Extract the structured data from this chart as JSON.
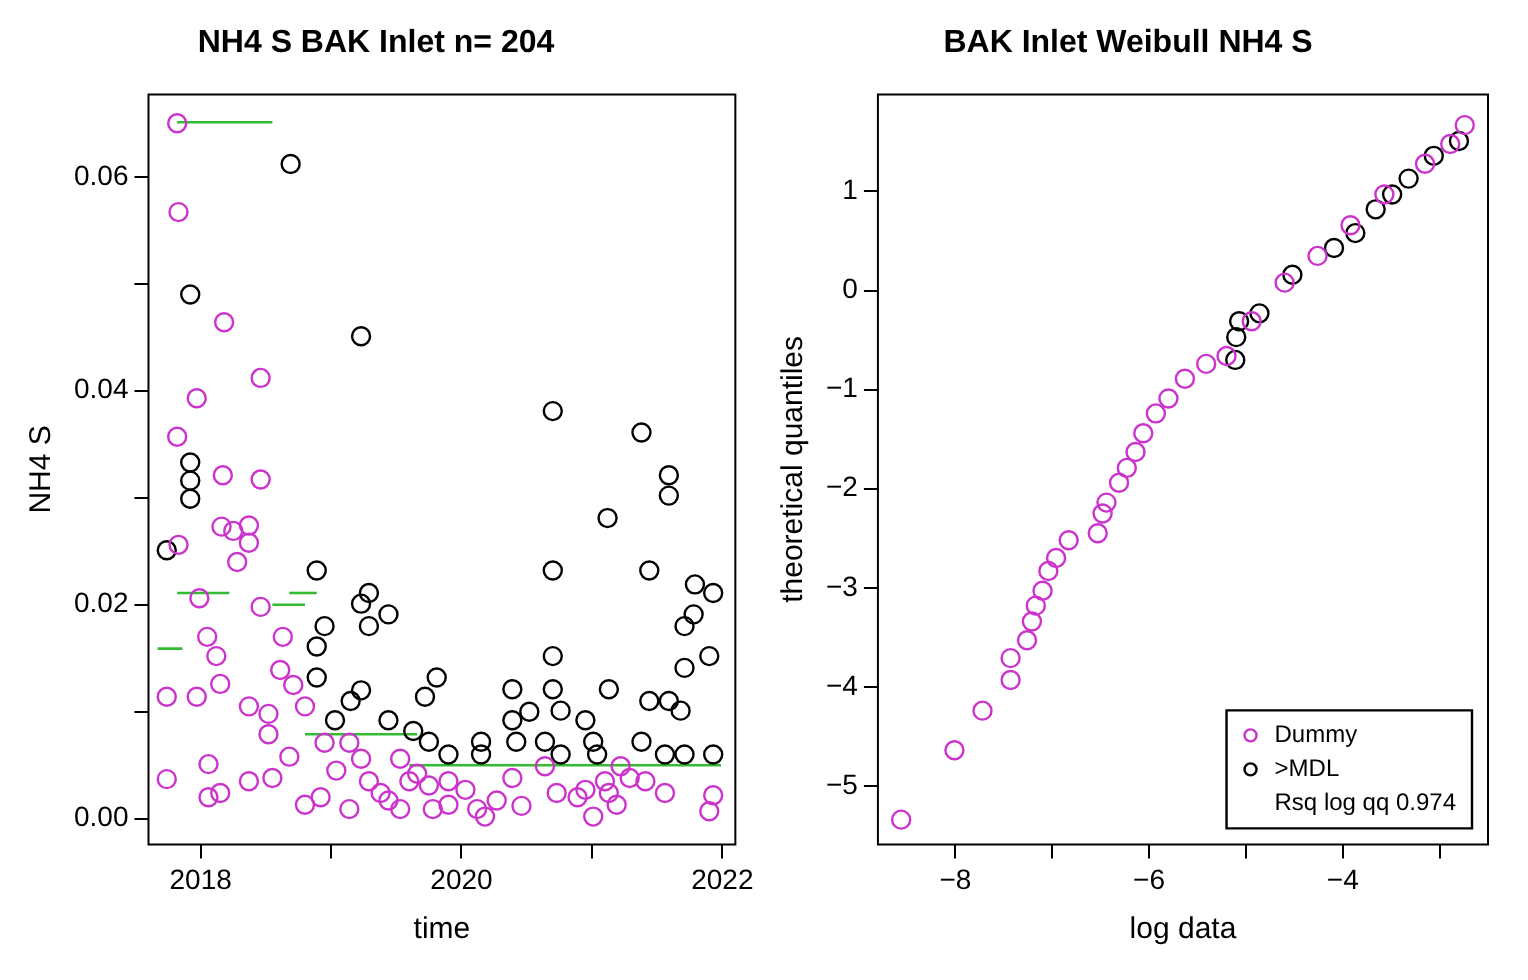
{
  "chart_data": [
    {
      "type": "scatter",
      "title": "NH4 S BAK Inlet n= 204",
      "xlabel": "time",
      "ylabel": "NH4 S",
      "xlim": [
        2017.6,
        2022.1
      ],
      "ylim": [
        -0.0024,
        0.0677
      ],
      "xticks": [
        2018,
        {
          "value": 2019,
          "label": null
        },
        2020,
        {
          "value": 2021,
          "label": null
        },
        2022
      ],
      "yticks": [
        {
          "value": 0,
          "label": "0.00"
        },
        {
          "value": 0.01,
          "label": null
        },
        {
          "value": 0.02,
          "label": "0.02"
        },
        {
          "value": 0.03,
          "label": null
        },
        {
          "value": 0.04,
          "label": "0.04"
        },
        {
          "value": 0.05,
          "label": null
        },
        {
          "value": 0.06,
          "label": "0.06"
        }
      ],
      "grid": false,
      "marker": "circle",
      "series": [
        {
          "color": "#cc33cc",
          "x": [
            2017.82,
            2017.83,
            2018.18,
            2018.46,
            2017.97,
            2017.82,
            2018.17,
            2018.46,
            2017.83,
            2018.16,
            2018.25,
            2018.37,
            2018.37,
            2018.28,
            2018.46,
            2017.99,
            2018.05,
            2018.12,
            2018.15,
            2017.74,
            2017.97,
            2018.37,
            2018.52,
            2018.52,
            2018.61,
            2018.63,
            2018.71,
            2018.8,
            2018.68,
            2017.74,
            2018.06,
            2018.06,
            2018.15,
            2018.37,
            2018.55,
            2018.8,
            2018.92,
            2018.95,
            2019.14,
            2019.14,
            2019.23,
            2019.29,
            2019.38,
            2019.44,
            2019.53,
            2019.53,
            2019.6,
            2019.75,
            2019.78,
            2019.9,
            2020.03,
            2020.12,
            2020.18,
            2020.39,
            2020.46,
            2020.64,
            2020.73,
            2020.89,
            2021.01,
            2021.1,
            2021.19,
            2021.22,
            2021.29,
            2021.41,
            2021.56,
            2021.9,
            2021.93,
            2019.04,
            2019.66,
            2019.9,
            2020.27,
            2020.95,
            2021.13
          ],
          "values": [
            0.065,
            0.0567,
            0.0464,
            0.0412,
            0.0393,
            0.0357,
            0.0321,
            0.0317,
            0.0256,
            0.0273,
            0.0269,
            0.0274,
            0.0258,
            0.024,
            0.0198,
            0.0206,
            0.017,
            0.0152,
            0.0126,
            0.0114,
            0.0114,
            0.0105,
            0.0098,
            0.0079,
            0.0139,
            0.017,
            0.0125,
            0.0105,
            0.0058,
            0.0037,
            0.0051,
            0.002,
            0.0024,
            0.0035,
            0.0038,
            0.0013,
            0.002,
            0.0071,
            0.0071,
            0.0009,
            0.0056,
            0.0035,
            0.0024,
            0.0017,
            0.0056,
            0.0009,
            0.0035,
            0.0031,
            0.0009,
            0.0013,
            0.0027,
            0.0009,
            0.0002,
            0.0038,
            0.0012,
            0.0049,
            0.0024,
            0.002,
            0.0002,
            0.0035,
            0.0013,
            0.0049,
            0.0038,
            0.0035,
            0.0024,
            0.0007,
            0.0022,
            0.0045,
            0.0042,
            0.0035,
            0.0017,
            0.0027,
            0.0024
          ]
        },
        {
          "color": "#000000",
          "x": [
            2017.74,
            2017.92,
            2017.92,
            2017.92,
            2017.92,
            2018.69,
            2019.23,
            2018.89,
            2018.95,
            2018.89,
            2018.89,
            2019.03,
            2019.15,
            2019.23,
            2019.29,
            2019.23,
            2019.29,
            2019.44,
            2019.44,
            2019.63,
            2019.81,
            2019.72,
            2019.75,
            2019.9,
            2020.15,
            2020.15,
            2020.39,
            2020.39,
            2020.42,
            2020.52,
            2020.64,
            2020.7,
            2020.7,
            2020.7,
            2020.7,
            2020.76,
            2020.76,
            2020.95,
            2021.01,
            2021.04,
            2021.12,
            2021.13,
            2021.38,
            2021.38,
            2021.44,
            2021.44,
            2021.56,
            2021.59,
            2021.59,
            2021.59,
            2021.68,
            2021.71,
            2021.71,
            2021.71,
            2021.78,
            2021.79,
            2021.9,
            2021.93,
            2021.93
          ],
          "values": [
            0.0251,
            0.049,
            0.0333,
            0.0316,
            0.0299,
            0.0612,
            0.0451,
            0.0232,
            0.018,
            0.0161,
            0.0132,
            0.0092,
            0.011,
            0.012,
            0.0211,
            0.0201,
            0.018,
            0.0191,
            0.0092,
            0.0082,
            0.0132,
            0.0114,
            0.0072,
            0.006,
            0.0072,
            0.006,
            0.0121,
            0.0092,
            0.0072,
            0.01,
            0.0072,
            0.0381,
            0.0232,
            0.0152,
            0.0121,
            0.0101,
            0.006,
            0.0092,
            0.0072,
            0.006,
            0.0281,
            0.0121,
            0.0361,
            0.0072,
            0.0232,
            0.011,
            0.006,
            0.0321,
            0.0302,
            0.011,
            0.0101,
            0.006,
            0.018,
            0.0141,
            0.0191,
            0.0219,
            0.0152,
            0.0211,
            0.006
          ]
        },
        {
          "type": "line",
          "marker": "none",
          "color": "#33bb33",
          "x": [
            2017.82,
            2018.55
          ],
          "values": [
            0.0651,
            0.0651
          ]
        },
        {
          "type": "line",
          "marker": "none",
          "color": "#33bb33",
          "x": [
            2017.82,
            2018.22
          ],
          "values": [
            0.0211,
            0.0211
          ]
        },
        {
          "type": "line",
          "marker": "none",
          "color": "#33bb33",
          "x": [
            2018.68,
            2018.89
          ],
          "values": [
            0.0211,
            0.0211
          ]
        },
        {
          "type": "line",
          "marker": "none",
          "color": "#33bb33",
          "x": [
            2018.55,
            2018.8
          ],
          "values": [
            0.02,
            0.02
          ]
        },
        {
          "type": "line",
          "marker": "none",
          "color": "#33bb33",
          "x": [
            2017.67,
            2017.86
          ],
          "values": [
            0.0159,
            0.0159
          ]
        },
        {
          "type": "line",
          "marker": "none",
          "color": "#33bb33",
          "x": [
            2018.8,
            2019.66
          ],
          "values": [
            0.0079,
            0.0079
          ]
        },
        {
          "type": "line",
          "marker": "none",
          "color": "#33bb33",
          "x": [
            2019.6,
            2021.99
          ],
          "values": [
            0.005,
            0.005
          ]
        }
      ]
    },
    {
      "type": "scatter",
      "title": "BAK Inlet Weibull NH4 S",
      "xlabel": "log data",
      "ylabel": "theoretical quantiles",
      "xlim": [
        -8.8,
        -2.5
      ],
      "ylim": [
        -5.59,
        1.98
      ],
      "xticks": [
        -8,
        {
          "value": -7,
          "label": null
        },
        -6,
        {
          "value": -5,
          "label": null
        },
        -4,
        {
          "value": -3,
          "label": null
        }
      ],
      "yticks": [
        -5,
        -4,
        -3,
        -2,
        -1,
        0,
        1
      ],
      "grid": false,
      "marker": "circle",
      "legend": "bottom right",
      "annotations": [
        "Rsq log qq 0.974"
      ],
      "series": [
        {
          "name": "Dummy",
          "color": "#cc33cc",
          "x": [
            -8.56,
            -8.01,
            -7.72,
            -7.43,
            -7.43,
            -7.26,
            -7.21,
            -7.17,
            -7.1,
            -7.04,
            -6.96,
            -6.83,
            -6.53,
            -6.48,
            -6.44,
            -6.31,
            -6.23,
            -6.14,
            -6.06,
            -5.93,
            -5.8,
            -5.63,
            -5.41,
            -5.2,
            -4.94,
            -4.6,
            -4.26,
            -3.92,
            -3.57,
            -3.15,
            -2.89,
            -2.74
          ],
          "values": [
            -5.34,
            -4.64,
            -4.24,
            -3.93,
            -3.71,
            -3.53,
            -3.34,
            -3.18,
            -3.03,
            -2.83,
            -2.7,
            -2.52,
            -2.45,
            -2.25,
            -2.14,
            -1.94,
            -1.79,
            -1.63,
            -1.44,
            -1.24,
            -1.09,
            -0.89,
            -0.74,
            -0.66,
            -0.31,
            0.08,
            0.35,
            0.66,
            0.97,
            1.28,
            1.48,
            1.67
          ]
        },
        {
          "name": ">MDL",
          "color": "#000000",
          "x": [
            -5.11,
            -5.1,
            -5.07,
            -4.86,
            -4.52,
            -4.09,
            -3.87,
            -3.66,
            -3.49,
            -3.32,
            -3.06,
            -2.8
          ],
          "values": [
            -0.7,
            -0.47,
            -0.31,
            -0.23,
            0.16,
            0.43,
            0.58,
            0.82,
            0.97,
            1.13,
            1.36,
            1.51
          ]
        }
      ]
    }
  ]
}
